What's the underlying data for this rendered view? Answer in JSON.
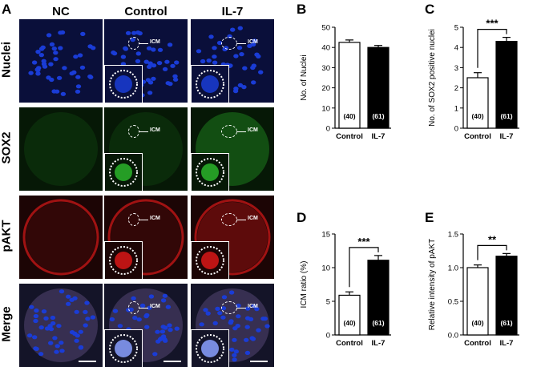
{
  "figure": {
    "panel_letters": [
      "A",
      "B",
      "C",
      "D",
      "E"
    ],
    "columns": [
      "NC",
      "Control",
      "IL-7"
    ],
    "rows": [
      "Nuclei",
      "SOX2",
      "pAKT",
      "Merge"
    ],
    "icm_label": "ICM",
    "colors": {
      "nuclei": "#1a3cd6",
      "sox2": "#2bb52b",
      "pakt": "#d81818",
      "merge_bg": "#3a3a6a",
      "control_bar": "#ffffff",
      "il7_bar": "#000000"
    }
  },
  "chart_data": [
    {
      "type": "bar",
      "panel": "B",
      "categories": [
        "Control",
        "IL-7"
      ],
      "values": [
        42.5,
        40
      ],
      "errors": [
        1.2,
        1.0
      ],
      "n_labels": [
        "(40)",
        "(61)"
      ],
      "ylabel": "No. of Nuclei",
      "ylim": [
        0,
        50
      ],
      "yticks": [
        "0",
        "10",
        "20",
        "30",
        "40",
        "50"
      ],
      "significance": ""
    },
    {
      "type": "bar",
      "panel": "C",
      "categories": [
        "Control",
        "IL-7"
      ],
      "values": [
        2.5,
        4.3
      ],
      "errors": [
        0.25,
        0.2
      ],
      "n_labels": [
        "(40)",
        "(61)"
      ],
      "ylabel": "No. of SOX2 positive nuclei",
      "ylim": [
        0,
        5
      ],
      "yticks": [
        "0",
        "1",
        "2",
        "3",
        "4",
        "5"
      ],
      "significance": "***"
    },
    {
      "type": "bar",
      "panel": "D",
      "categories": [
        "Control",
        "IL-7"
      ],
      "values": [
        5.9,
        11.1
      ],
      "errors": [
        0.5,
        0.7
      ],
      "n_labels": [
        "(40)",
        "(61)"
      ],
      "ylabel": "ICM ratio (%)",
      "ylim": [
        0,
        15
      ],
      "yticks": [
        "0",
        "5",
        "10",
        "15"
      ],
      "significance": "***"
    },
    {
      "type": "bar",
      "panel": "E",
      "categories": [
        "Control",
        "IL-7"
      ],
      "values": [
        1.0,
        1.17
      ],
      "errors": [
        0.04,
        0.04
      ],
      "n_labels": [
        "(40)",
        "(61)"
      ],
      "ylabel": "Relative intensity of pAKT",
      "ylim": [
        0,
        1.5
      ],
      "yticks": [
        "0.0",
        "0.5",
        "1.0",
        "1.5"
      ],
      "significance": "**"
    }
  ]
}
